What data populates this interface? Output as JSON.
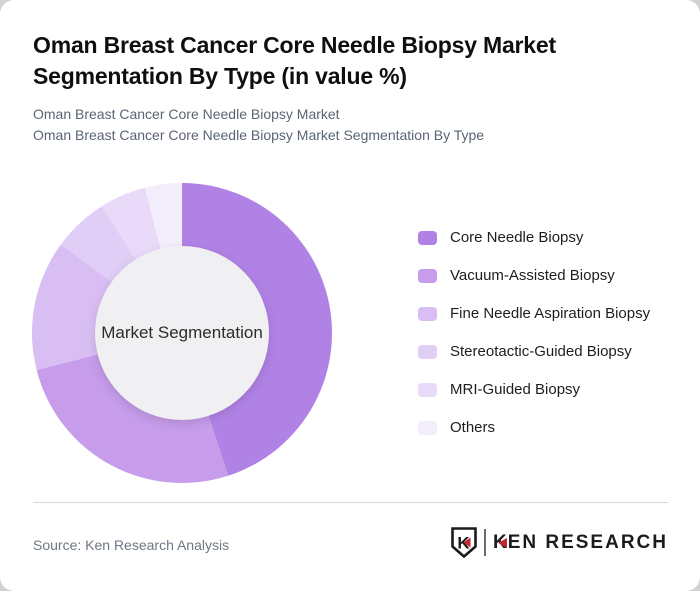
{
  "page": {
    "background_color": "#d2d2d2",
    "card_background_color": "#ffffff"
  },
  "header": {
    "title": "Oman Breast Cancer Core Needle Biopsy Market Segmentation By Type (in value %)",
    "subtitle_line1": "Oman Breast Cancer Core Needle Biopsy Market",
    "subtitle_line2": "Oman Breast Cancer Core Needle Biopsy Market Segmentation By Type"
  },
  "chart_data": {
    "type": "pie",
    "style": "donut",
    "title": "Oman Breast Cancer Core Needle Biopsy Market Segmentation By Type (in value %)",
    "unit": "value %",
    "center_label": "Market Segmentation",
    "start_angle_deg": 0,
    "direction": "clockwise",
    "legend_position": "right",
    "values_are_estimated_from_arc_angles": true,
    "segments": [
      {
        "label": "Core Needle Biopsy",
        "value": 45,
        "color": "#b182e6"
      },
      {
        "label": "Vacuum-Assisted Biopsy",
        "value": 26,
        "color": "#c69ceb"
      },
      {
        "label": "Fine Needle Aspiration Biopsy",
        "value": 14,
        "color": "#d9bef3"
      },
      {
        "label": "Stereotactic-Guided Biopsy",
        "value": 6,
        "color": "#e1cef6"
      },
      {
        "label": "MRI-Guided Biopsy",
        "value": 5,
        "color": "#e9daf9"
      },
      {
        "label": "Others",
        "value": 4,
        "color": "#f4edfc"
      }
    ],
    "hole_color": "#f0eff1"
  },
  "footer": {
    "source": "Source: Ken Research Analysis",
    "logo": {
      "emblem_letter": "K",
      "wordmark_first": "K",
      "wordmark_rest": "EN RESEARCH",
      "accent_color": "#c2272f"
    }
  }
}
